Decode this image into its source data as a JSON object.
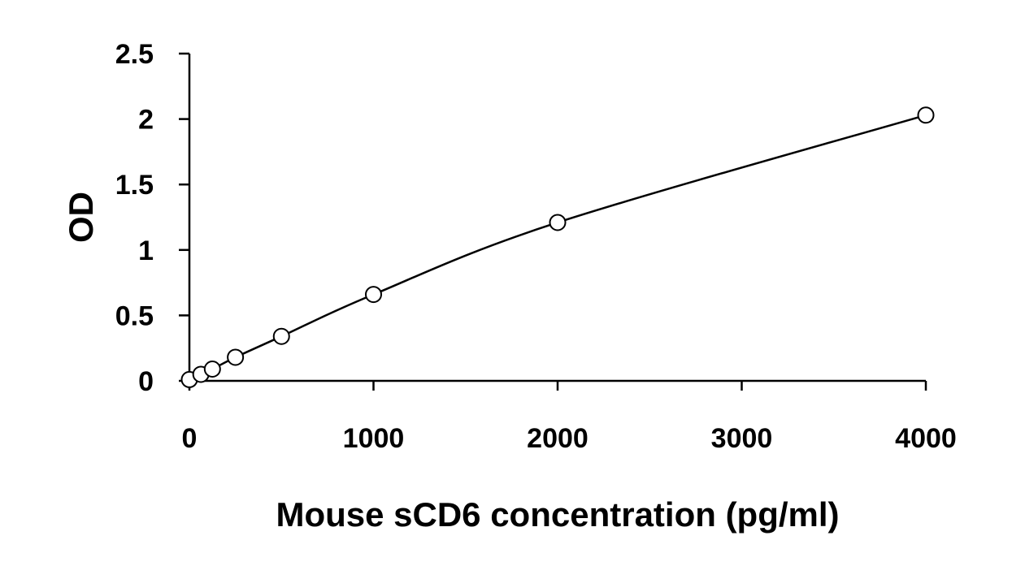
{
  "chart_data": {
    "type": "scatter",
    "xlabel": "Mouse sCD6 concentration (pg/ml)",
    "ylabel": "OD",
    "xlim": [
      0,
      4000
    ],
    "ylim": [
      0,
      2.5
    ],
    "x_ticks": [
      "0",
      "1000",
      "2000",
      "3000",
      "4000"
    ],
    "y_ticks": [
      "0",
      "0.5",
      "1",
      "1.5",
      "2",
      "2.5"
    ],
    "grid": false,
    "legend": "none",
    "series": [
      {
        "x": [
          0,
          62.5,
          125,
          250,
          500,
          1000,
          2000,
          4000
        ],
        "y": [
          0.01,
          0.05,
          0.09,
          0.18,
          0.34,
          0.66,
          1.21,
          2.03
        ]
      }
    ],
    "fit_curve": true,
    "marker": "open-circle",
    "colors": {
      "line": "#000000",
      "marker_fill": "#ffffff"
    }
  }
}
